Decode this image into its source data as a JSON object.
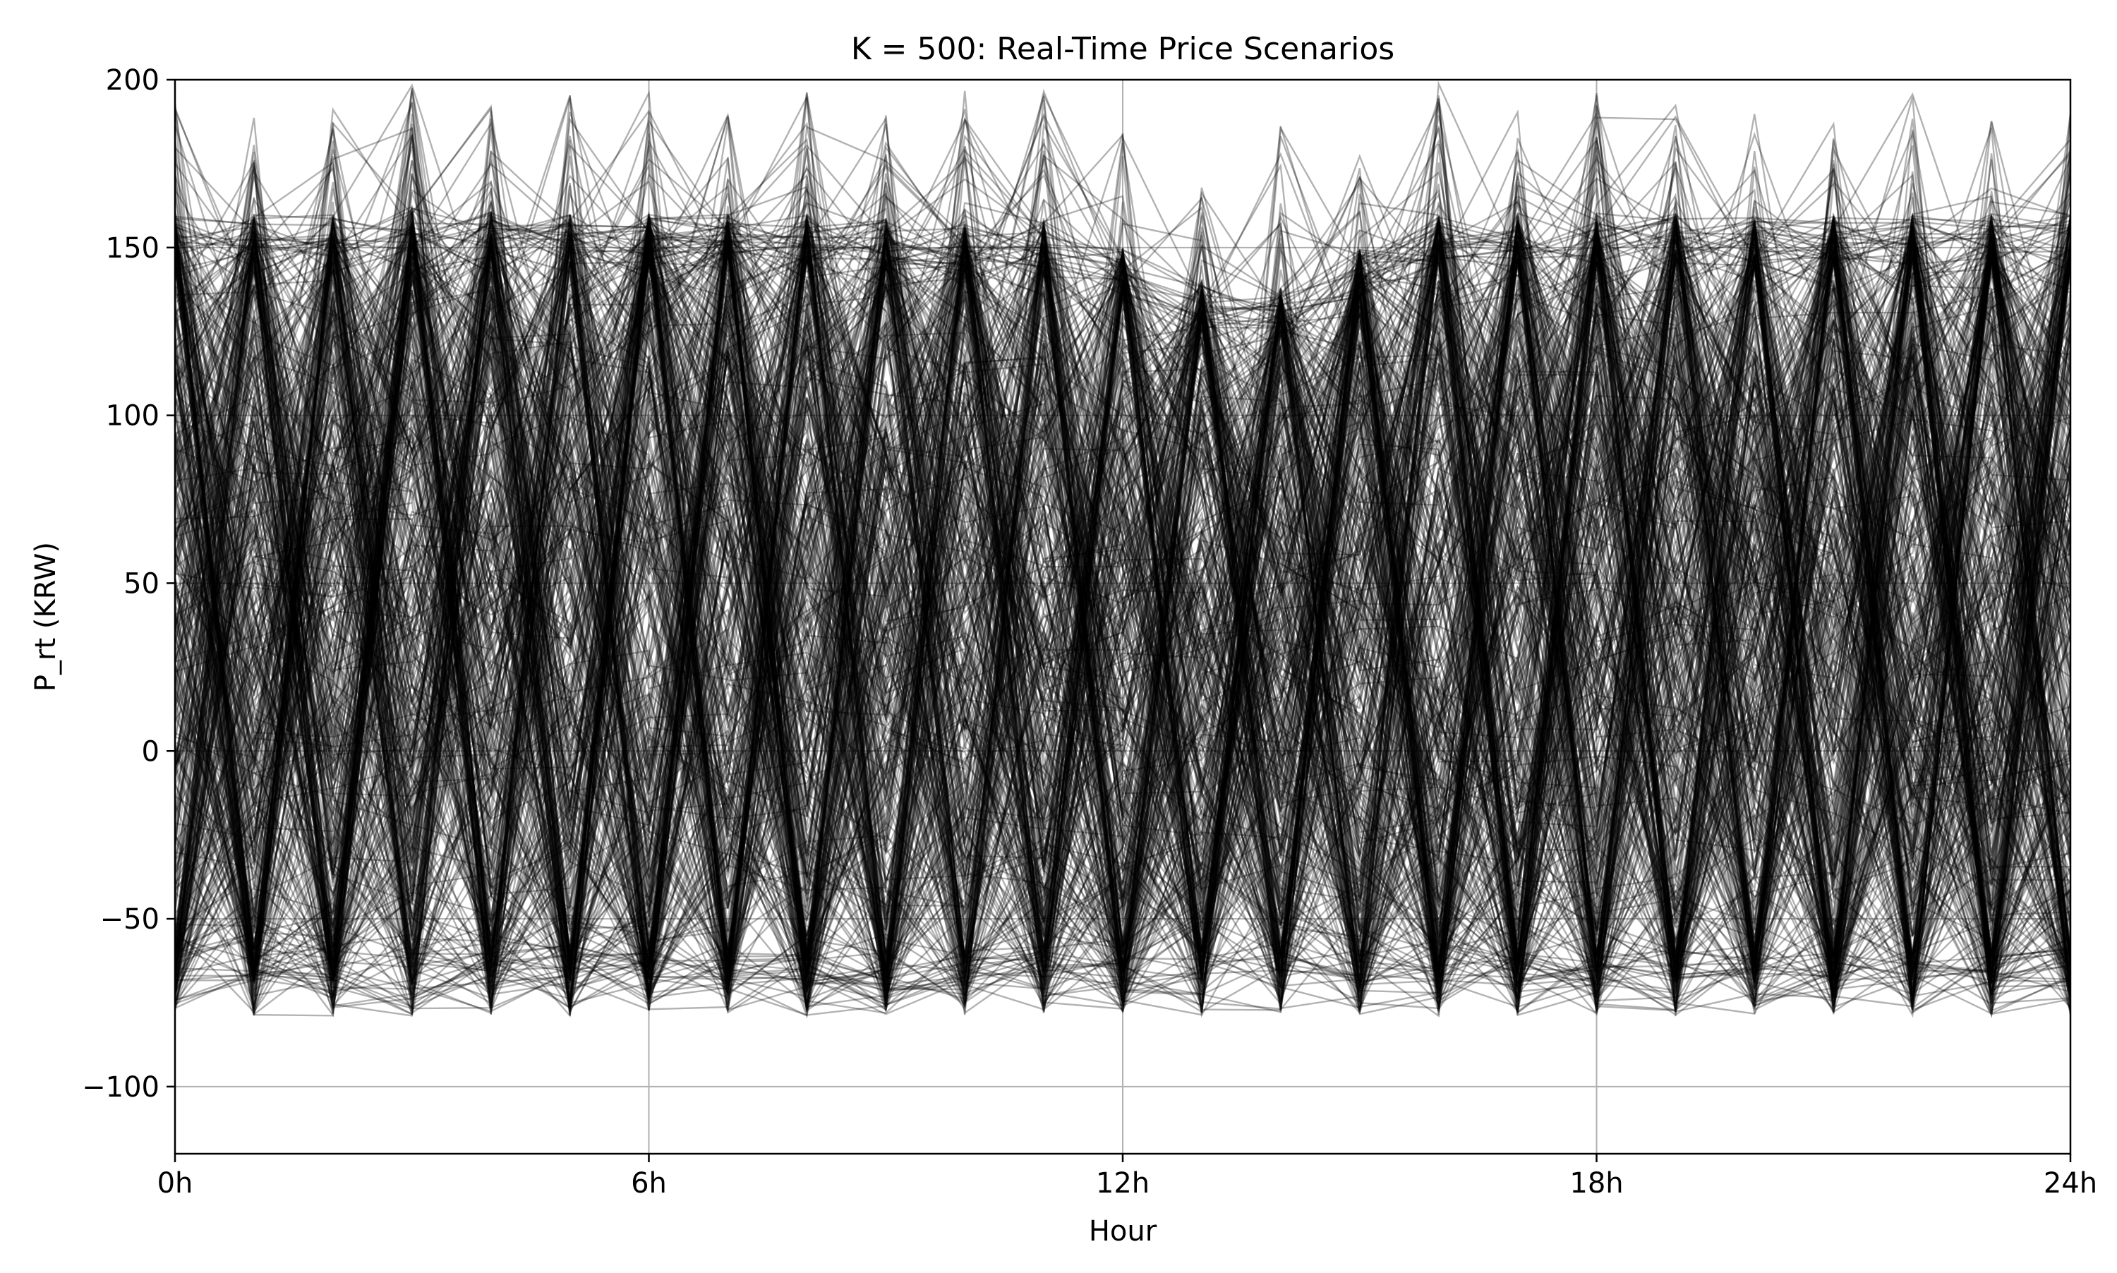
{
  "chart_data": {
    "type": "line",
    "title": "K = 500: Real-Time Price Scenarios",
    "xlabel": "Hour",
    "ylabel": "P_rt (KRW)",
    "xlim": [
      0,
      24
    ],
    "ylim": [
      -120,
      200
    ],
    "x_ticks": [
      {
        "value": 0,
        "label": "0h"
      },
      {
        "value": 6,
        "label": "6h"
      },
      {
        "value": 12,
        "label": "12h"
      },
      {
        "value": 18,
        "label": "18h"
      },
      {
        "value": 24,
        "label": "24h"
      }
    ],
    "y_ticks": [
      {
        "value": 200,
        "label": "200"
      },
      {
        "value": 150,
        "label": "150"
      },
      {
        "value": 100,
        "label": "100"
      },
      {
        "value": 50,
        "label": "50"
      },
      {
        "value": 0,
        "label": "0"
      },
      {
        "value": -50,
        "label": "−50"
      },
      {
        "value": -100,
        "label": "−100"
      }
    ],
    "grid": true,
    "line_color": "#000000",
    "scenario_count": 500,
    "hours": [
      0,
      1,
      2,
      3,
      4,
      5,
      6,
      7,
      8,
      9,
      10,
      11,
      12,
      13,
      14,
      15,
      16,
      17,
      18,
      19,
      20,
      21,
      22,
      23,
      24
    ],
    "envelope_max": [
      195,
      189,
      194,
      199,
      192,
      196,
      197,
      194,
      199,
      192,
      198,
      199,
      185,
      173,
      187,
      180,
      199,
      193,
      198,
      194,
      191,
      187,
      196,
      190,
      190
    ],
    "envelope_typical_high": [
      160,
      160,
      160,
      162,
      161,
      160,
      160,
      160,
      160,
      159,
      158,
      158,
      150,
      140,
      138,
      150,
      160,
      160,
      160,
      160,
      159,
      160,
      160,
      160,
      160
    ],
    "envelope_min": [
      -78,
      -79,
      -79,
      -79,
      -79,
      -79,
      -78,
      -79,
      -79,
      -79,
      -79,
      -78,
      -78,
      -79,
      -78,
      -79,
      -79,
      -79,
      -79,
      -79,
      -79,
      -79,
      -79,
      -79,
      -79
    ]
  }
}
